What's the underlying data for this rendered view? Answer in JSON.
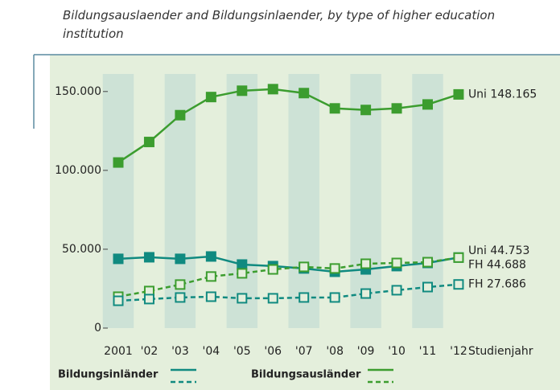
{
  "chart_data": {
    "type": "line",
    "subtitle": "Bildungsauslaender and Bildungsinlaender, by type of higher education institution",
    "categories": [
      "2001",
      "'02",
      "'03",
      "'04",
      "'05",
      "'06",
      "'07",
      "'08",
      "'09",
      "'10",
      "'11",
      "'12"
    ],
    "x_label": "Studienjahr",
    "ylim": [
      0,
      155000
    ],
    "yticks": [
      0,
      {
        "value": 50000,
        "label": "50.000"
      },
      {
        "value": 100000,
        "label": "100.000"
      },
      {
        "value": 150000,
        "label": "150.000"
      }
    ],
    "series": [
      {
        "color": "#3c9d2f",
        "dashed": false,
        "values": [
          105000,
          118000,
          135000,
          146500,
          150500,
          151500,
          149000,
          139300,
          138300,
          139300,
          141800,
          148165
        ],
        "value_labels": [
          null,
          null,
          null,
          null,
          null,
          null,
          null,
          null,
          null,
          null,
          null,
          "Uni 148.165"
        ]
      },
      {
        "color": "#108a80",
        "dashed": false,
        "values": [
          43900,
          44900,
          43900,
          45400,
          40300,
          39300,
          37800,
          35700,
          37200,
          39300,
          41300,
          44753
        ],
        "value_labels": [
          null,
          null,
          null,
          null,
          null,
          null,
          null,
          null,
          null,
          null,
          null,
          "Uni 44.753"
        ]
      },
      {
        "color": "#3c9d2f",
        "dashed": true,
        "values": [
          19900,
          23500,
          27600,
          32700,
          34700,
          37200,
          38800,
          37800,
          40800,
          41300,
          41800,
          44688
        ],
        "value_labels": [
          null,
          null,
          null,
          null,
          null,
          null,
          null,
          null,
          null,
          null,
          null,
          "FH 44.688"
        ]
      },
      {
        "color": "#108a80",
        "dashed": true,
        "values": [
          17300,
          18400,
          19400,
          19900,
          18900,
          18900,
          19400,
          19400,
          21900,
          24000,
          26000,
          27686
        ],
        "value_labels": [
          null,
          null,
          null,
          null,
          null,
          null,
          null,
          null,
          null,
          null,
          null,
          "FH 27.686"
        ]
      }
    ],
    "legend": [
      {
        "name": "Bildungsinländer",
        "color": "#108a80"
      },
      {
        "name": "Bildungsausländer",
        "color": "#3c9d2f"
      }
    ]
  }
}
